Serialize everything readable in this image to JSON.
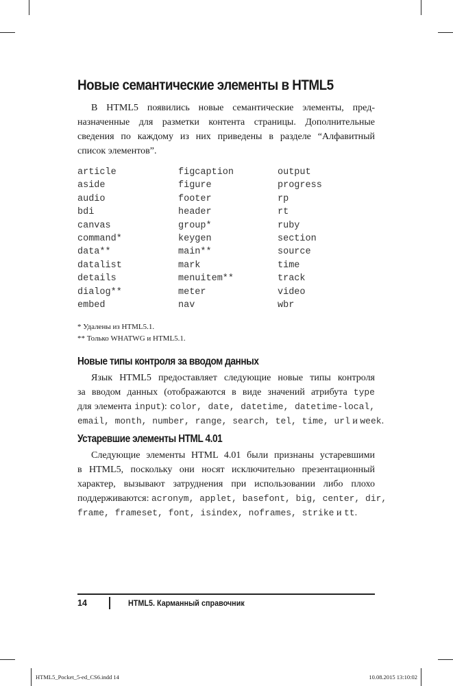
{
  "heading": "Новые семантические элементы в HTML5",
  "intro": [
    "В HTML5 появились новые семантические элементы, пред-",
    "назначенные для разметки контента страницы. Дополнительные",
    "сведения по каждому из них приведены в разделе “Алфавитный",
    "список элементов”."
  ],
  "elements": [
    [
      "article",
      "aside",
      "audio",
      "bdi",
      "canvas",
      "command*",
      "data**",
      "datalist",
      "details",
      "dialog**",
      "embed"
    ],
    [
      "figcaption",
      "figure",
      "footer",
      "header",
      "group*",
      "keygen",
      "main**",
      "mark",
      "menuitem**",
      "meter",
      "nav"
    ],
    [
      "output",
      "progress",
      "rp",
      "rt",
      "ruby",
      "section",
      "source",
      "time",
      "track",
      "video",
      "wbr"
    ]
  ],
  "footnotes": [
    "* Удалены из HTML5.1.",
    "** Только WHATWG и HTML5.1."
  ],
  "section2": {
    "heading": "Новые типы контроля за вводом данных",
    "l1": "Язык HTML5 предоставляет следующие новые типы контроля",
    "l2a": "за вводом данных (отображаются в виде значений атрибута ",
    "l2code": "type",
    "l3a": "для элемента ",
    "l3code": "input",
    "l3b": "): ",
    "l3codes": "color, date, datetime, datetime-local,",
    "l4codes": "email, month, number, range, search, tel, time, url",
    "l4and": " и ",
    "l4code": "week",
    "l4end": "."
  },
  "section3": {
    "heading": "Устаревшие элементы HTML 4.01",
    "l1": "Следующие элементы HTML 4.01 были признаны устаревшими",
    "l2": "в HTML5, поскольку они носят исключительно презентационный",
    "l3": "характер, вызывают затруднения при использовании либо плохо",
    "l4a": "поддерживаются: ",
    "l4codes": "acronym, applet, basefont, big, center, dir,",
    "l5codes": "frame, frameset, font, isindex, noframes, strike",
    "l5and": " и ",
    "l5code": "tt",
    "l5end": "."
  },
  "footer": {
    "page_number": "14",
    "book_title": "HTML5. Карманный справочник"
  },
  "slug": {
    "file": "HTML5_Pocket_5-ed_CS6.indd   14",
    "datetime": "10.08.2015   13:10:02"
  }
}
